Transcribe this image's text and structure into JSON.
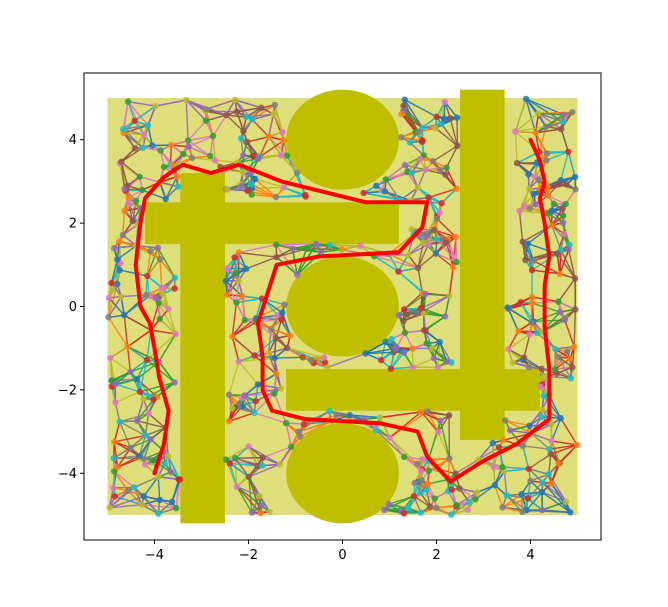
{
  "chart_data": {
    "type": "scatter",
    "title": "",
    "xlabel": "",
    "ylabel": "",
    "xlim": [
      -5.5,
      5.5
    ],
    "ylim": [
      -5.6,
      5.6
    ],
    "grid": false,
    "legend": "none",
    "xticks": [
      -4,
      -2,
      0,
      2,
      4
    ],
    "yticks": [
      -4,
      -2,
      0,
      2,
      4
    ],
    "xtick_labels": [
      "−4",
      "−2",
      "0",
      "2",
      "4"
    ],
    "ytick_labels": [
      "−4",
      "−2",
      "0",
      "2",
      "4"
    ],
    "workspace": {
      "x": [
        -5,
        5
      ],
      "y": [
        -5,
        5
      ],
      "color": "#dede7a"
    },
    "obstacle_color": "#bfbf00",
    "obstacles": [
      {
        "shape": "circle",
        "cx": 0,
        "cy": 4,
        "r": 1.2
      },
      {
        "shape": "circle",
        "cx": 0,
        "cy": 0,
        "r": 1.2
      },
      {
        "shape": "circle",
        "cx": 0,
        "cy": -4,
        "r": 1.2
      },
      {
        "shape": "rect",
        "x": [
          -3.45,
          -2.5
        ],
        "y": [
          -5.2,
          3.2
        ]
      },
      {
        "shape": "rect",
        "x": [
          -4.2,
          1.2
        ],
        "y": [
          1.5,
          2.5
        ]
      },
      {
        "shape": "rect",
        "x": [
          2.5,
          3.45
        ],
        "y": [
          -3.2,
          5.2
        ]
      },
      {
        "shape": "rect",
        "x": [
          -1.2,
          4.2
        ],
        "y": [
          -2.5,
          -1.5
        ]
      }
    ],
    "roadmap": {
      "palette": [
        "#1f77b4",
        "#ff7f0e",
        "#2ca02c",
        "#d62728",
        "#9467bd",
        "#8c564b",
        "#e377c2",
        "#7f7f7f",
        "#bcbd22",
        "#17becf"
      ]
    },
    "path": {
      "color": "#ff0000",
      "points": [
        [
          -4.0,
          -4.0
        ],
        [
          -3.8,
          -3.3
        ],
        [
          -3.7,
          -2.5
        ],
        [
          -3.9,
          -1.7
        ],
        [
          -4.0,
          -1.0
        ],
        [
          -4.1,
          -0.4
        ],
        [
          -4.3,
          0.0
        ],
        [
          -4.4,
          1.0
        ],
        [
          -4.3,
          2.0
        ],
        [
          -4.2,
          2.6
        ],
        [
          -3.8,
          3.1
        ],
        [
          -3.4,
          3.4
        ],
        [
          -2.8,
          3.2
        ],
        [
          -2.2,
          3.4
        ],
        [
          -1.3,
          3.0
        ],
        [
          0.5,
          2.5
        ],
        [
          1.8,
          2.5
        ],
        [
          1.7,
          1.9
        ],
        [
          1.2,
          1.3
        ],
        [
          -0.5,
          1.2
        ],
        [
          -1.4,
          1.0
        ],
        [
          -1.6,
          0.3
        ],
        [
          -1.8,
          -0.4
        ],
        [
          -1.7,
          -1.2
        ],
        [
          -1.7,
          -2.0
        ],
        [
          -1.5,
          -2.5
        ],
        [
          -0.8,
          -2.7
        ],
        [
          0.8,
          -2.8
        ],
        [
          1.6,
          -3.0
        ],
        [
          1.8,
          -3.6
        ],
        [
          2.3,
          -4.2
        ],
        [
          3.0,
          -3.7
        ],
        [
          3.7,
          -3.3
        ],
        [
          4.4,
          -2.7
        ],
        [
          4.4,
          -1.5
        ],
        [
          4.3,
          -0.5
        ],
        [
          4.3,
          0.5
        ],
        [
          4.4,
          1.2
        ],
        [
          4.3,
          2.0
        ],
        [
          4.2,
          2.6
        ],
        [
          4.3,
          3.0
        ],
        [
          4.2,
          3.5
        ],
        [
          4.0,
          4.0
        ]
      ]
    }
  }
}
